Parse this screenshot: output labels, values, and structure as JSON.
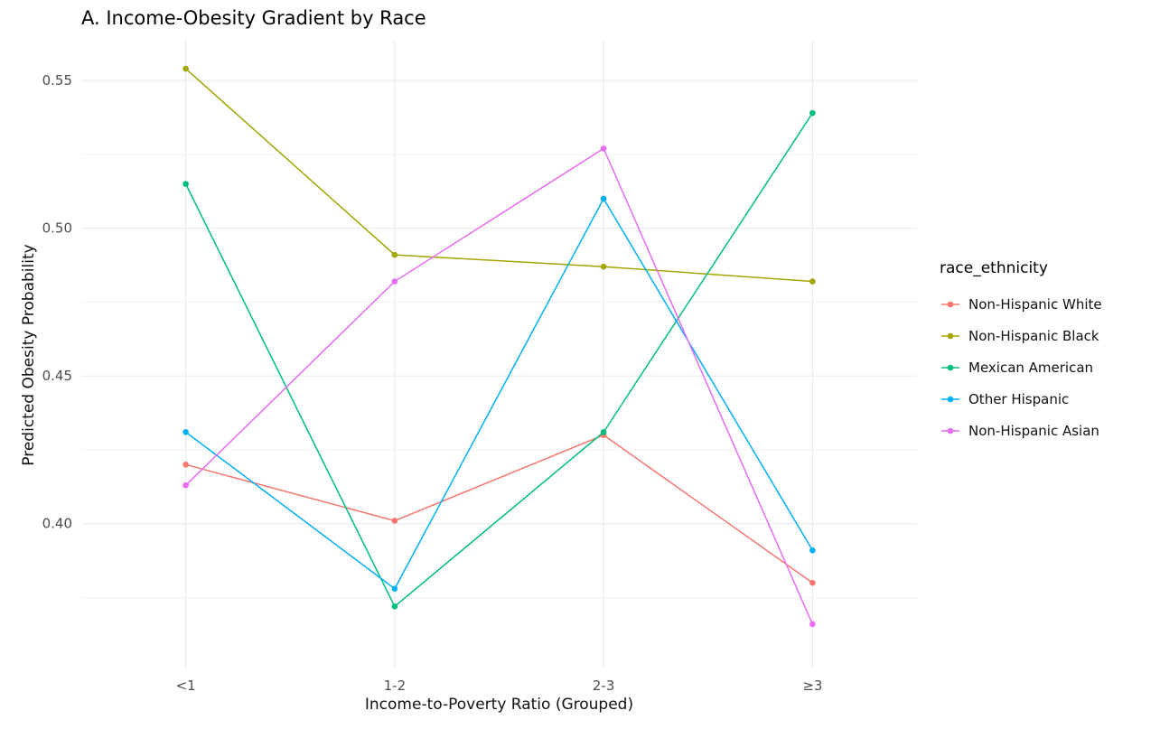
{
  "title": "A. Income-Obesity Gradient by Race",
  "chart_data": {
    "type": "line",
    "title": "A. Income-Obesity Gradient by Race",
    "xlabel": "Income-to-Poverty Ratio (Grouped)",
    "ylabel": "Predicted Obesity Probability",
    "categories": [
      "<1",
      "1-2",
      "2-3",
      "≥3"
    ],
    "series": [
      {
        "name": "Non-Hispanic White",
        "color": "#F8766D",
        "values": [
          0.42,
          0.401,
          0.43,
          0.38
        ]
      },
      {
        "name": "Non-Hispanic Black",
        "color": "#A3A500",
        "values": [
          0.554,
          0.491,
          0.487,
          0.482
        ]
      },
      {
        "name": "Mexican American",
        "color": "#00BF7D",
        "values": [
          0.515,
          0.372,
          0.431,
          0.539
        ]
      },
      {
        "name": "Other Hispanic",
        "color": "#00B0F6",
        "values": [
          0.431,
          0.378,
          0.51,
          0.391
        ]
      },
      {
        "name": "Non-Hispanic Asian",
        "color": "#E76BF3",
        "values": [
          0.413,
          0.482,
          0.527,
          0.366
        ]
      }
    ],
    "y_ticks": [
      0.4,
      0.45,
      0.5,
      0.55
    ],
    "ylim": [
      0.351,
      0.5635
    ],
    "legend_title": "race_ethnicity",
    "legend_position": "right",
    "grid": true,
    "grid_major_color": "#e8e8e8",
    "grid_minor_color": "#f3f3f3",
    "tick_label_color": "#4d4d4d"
  }
}
